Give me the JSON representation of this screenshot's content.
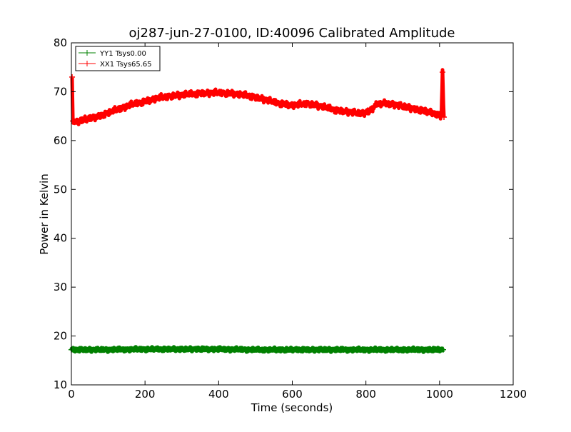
{
  "chart_data": {
    "type": "line",
    "title": "oj287-jun-27-0100, ID:40096 Calibrated Amplitude",
    "xlabel": "Time (seconds)",
    "ylabel": "Power in Kelvin",
    "xlim": [
      0,
      1200
    ],
    "ylim": [
      10,
      80
    ],
    "xticks": [
      0,
      200,
      400,
      600,
      800,
      1000,
      1200
    ],
    "yticks": [
      10,
      20,
      30,
      40,
      50,
      60,
      70,
      80
    ],
    "grid": false,
    "legend_position": "top-left",
    "series": [
      {
        "name": "YY1 Tsys0.00",
        "color": "#008000",
        "marker": "+",
        "x": [
          0,
          100,
          200,
          300,
          400,
          500,
          600,
          700,
          800,
          900,
          1010
        ],
        "y": [
          17.2,
          17.2,
          17.3,
          17.3,
          17.3,
          17.2,
          17.2,
          17.2,
          17.2,
          17.2,
          17.2
        ]
      },
      {
        "name": "XX1 Tsys65.65",
        "color": "#ff0000",
        "marker": "+",
        "x": [
          2,
          4,
          15,
          30,
          50,
          75,
          100,
          130,
          160,
          200,
          240,
          280,
          320,
          360,
          400,
          440,
          480,
          520,
          560,
          600,
          640,
          680,
          720,
          760,
          790,
          810,
          830,
          850,
          870,
          900,
          930,
          960,
          990,
          1005,
          1008,
          1012
        ],
        "y": [
          73.0,
          64.0,
          63.8,
          64.2,
          64.5,
          65.0,
          65.7,
          66.5,
          67.3,
          68.0,
          68.8,
          69.2,
          69.5,
          69.7,
          69.8,
          69.6,
          69.2,
          68.5,
          67.7,
          67.2,
          67.6,
          67.0,
          66.2,
          65.8,
          65.5,
          66.0,
          67.5,
          67.7,
          67.5,
          67.0,
          66.5,
          66.0,
          65.5,
          65.0,
          74.0,
          64.8
        ]
      }
    ]
  }
}
